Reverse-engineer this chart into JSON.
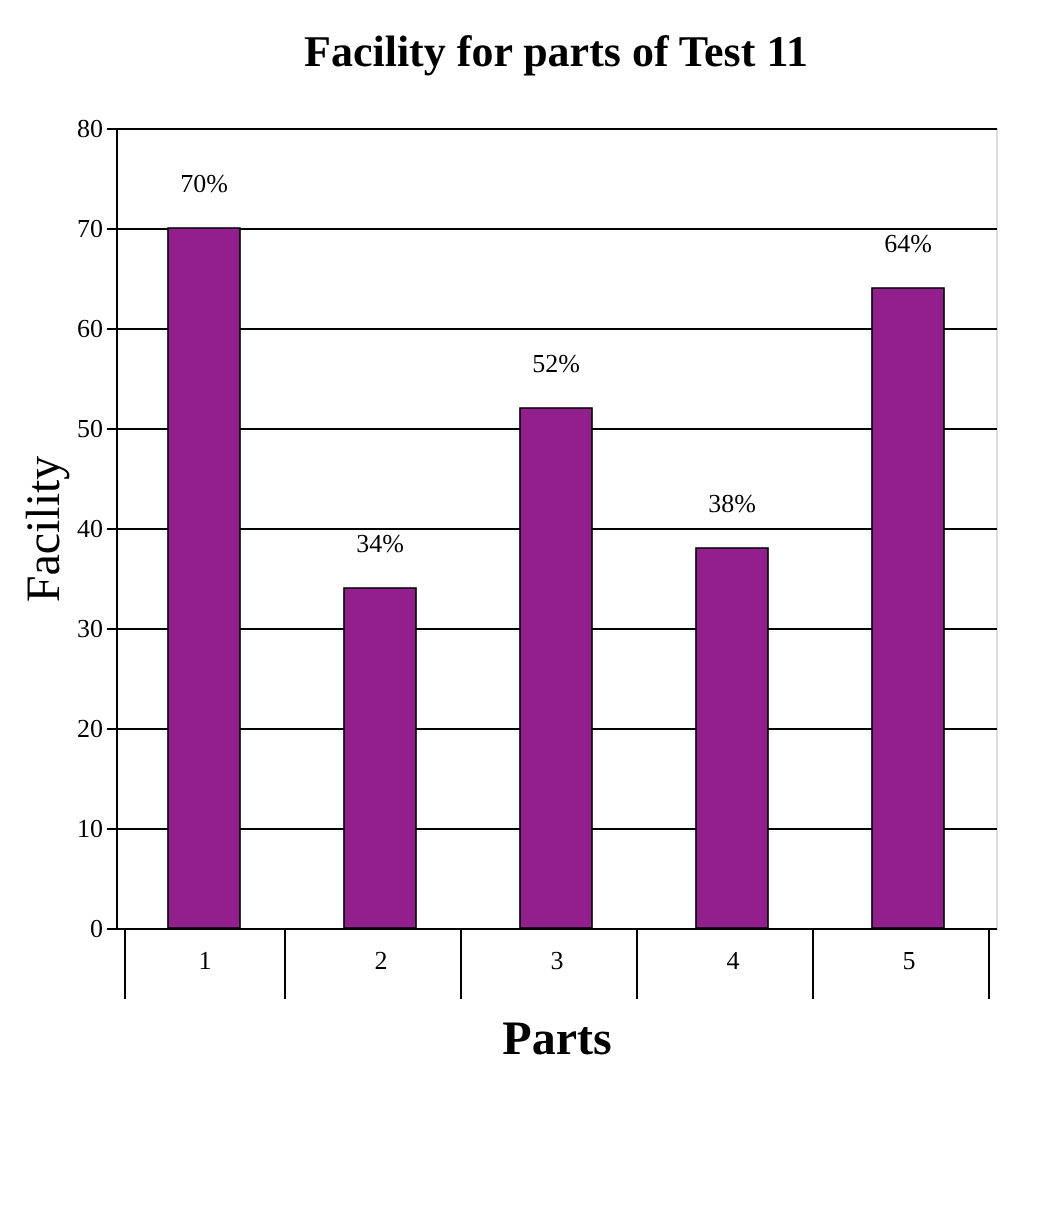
{
  "chart_data": {
    "type": "bar",
    "title": "Facility for parts of Test 11",
    "xlabel": "Parts",
    "ylabel": "Facility",
    "categories": [
      "1",
      "2",
      "3",
      "4",
      "5"
    ],
    "values": [
      70,
      34,
      52,
      38,
      64
    ],
    "value_labels": [
      "70%",
      "34%",
      "52%",
      "38%",
      "64%"
    ],
    "color": "#931f8f",
    "ylim": [
      0,
      80
    ],
    "yticks": [
      0,
      10,
      20,
      30,
      40,
      50,
      60,
      70,
      80
    ],
    "grid": "y"
  }
}
